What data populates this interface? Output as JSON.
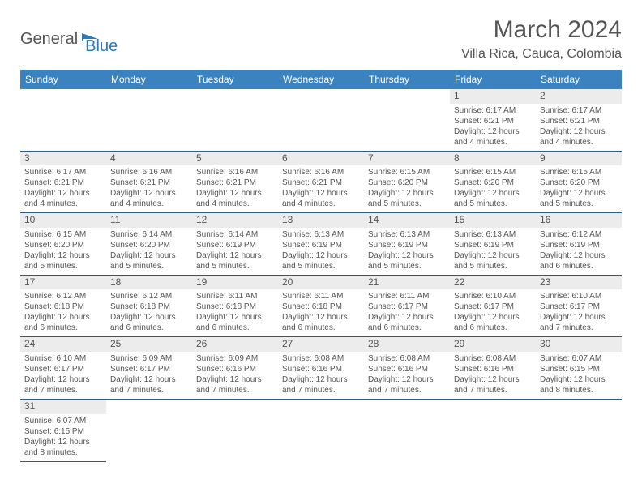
{
  "logo": {
    "text1": "General",
    "text2": "Blue"
  },
  "title": "March 2024",
  "location": "Villa Rica, Cauca, Colombia",
  "colors": {
    "header_bg": "#3b83c0",
    "header_text": "#ffffff",
    "border": "#2a5b8c",
    "daynum_bg": "#ececec",
    "text": "#555555"
  },
  "weekdays": [
    "Sunday",
    "Monday",
    "Tuesday",
    "Wednesday",
    "Thursday",
    "Friday",
    "Saturday"
  ],
  "weeks": [
    [
      null,
      null,
      null,
      null,
      null,
      {
        "d": "1",
        "sr": "Sunrise: 6:17 AM",
        "ss": "Sunset: 6:21 PM",
        "dl1": "Daylight: 12 hours",
        "dl2": "and 4 minutes."
      },
      {
        "d": "2",
        "sr": "Sunrise: 6:17 AM",
        "ss": "Sunset: 6:21 PM",
        "dl1": "Daylight: 12 hours",
        "dl2": "and 4 minutes."
      }
    ],
    [
      {
        "d": "3",
        "sr": "Sunrise: 6:17 AM",
        "ss": "Sunset: 6:21 PM",
        "dl1": "Daylight: 12 hours",
        "dl2": "and 4 minutes."
      },
      {
        "d": "4",
        "sr": "Sunrise: 6:16 AM",
        "ss": "Sunset: 6:21 PM",
        "dl1": "Daylight: 12 hours",
        "dl2": "and 4 minutes."
      },
      {
        "d": "5",
        "sr": "Sunrise: 6:16 AM",
        "ss": "Sunset: 6:21 PM",
        "dl1": "Daylight: 12 hours",
        "dl2": "and 4 minutes."
      },
      {
        "d": "6",
        "sr": "Sunrise: 6:16 AM",
        "ss": "Sunset: 6:21 PM",
        "dl1": "Daylight: 12 hours",
        "dl2": "and 4 minutes."
      },
      {
        "d": "7",
        "sr": "Sunrise: 6:15 AM",
        "ss": "Sunset: 6:20 PM",
        "dl1": "Daylight: 12 hours",
        "dl2": "and 5 minutes."
      },
      {
        "d": "8",
        "sr": "Sunrise: 6:15 AM",
        "ss": "Sunset: 6:20 PM",
        "dl1": "Daylight: 12 hours",
        "dl2": "and 5 minutes."
      },
      {
        "d": "9",
        "sr": "Sunrise: 6:15 AM",
        "ss": "Sunset: 6:20 PM",
        "dl1": "Daylight: 12 hours",
        "dl2": "and 5 minutes."
      }
    ],
    [
      {
        "d": "10",
        "sr": "Sunrise: 6:15 AM",
        "ss": "Sunset: 6:20 PM",
        "dl1": "Daylight: 12 hours",
        "dl2": "and 5 minutes."
      },
      {
        "d": "11",
        "sr": "Sunrise: 6:14 AM",
        "ss": "Sunset: 6:20 PM",
        "dl1": "Daylight: 12 hours",
        "dl2": "and 5 minutes."
      },
      {
        "d": "12",
        "sr": "Sunrise: 6:14 AM",
        "ss": "Sunset: 6:19 PM",
        "dl1": "Daylight: 12 hours",
        "dl2": "and 5 minutes."
      },
      {
        "d": "13",
        "sr": "Sunrise: 6:13 AM",
        "ss": "Sunset: 6:19 PM",
        "dl1": "Daylight: 12 hours",
        "dl2": "and 5 minutes."
      },
      {
        "d": "14",
        "sr": "Sunrise: 6:13 AM",
        "ss": "Sunset: 6:19 PM",
        "dl1": "Daylight: 12 hours",
        "dl2": "and 5 minutes."
      },
      {
        "d": "15",
        "sr": "Sunrise: 6:13 AM",
        "ss": "Sunset: 6:19 PM",
        "dl1": "Daylight: 12 hours",
        "dl2": "and 5 minutes."
      },
      {
        "d": "16",
        "sr": "Sunrise: 6:12 AM",
        "ss": "Sunset: 6:19 PM",
        "dl1": "Daylight: 12 hours",
        "dl2": "and 6 minutes."
      }
    ],
    [
      {
        "d": "17",
        "sr": "Sunrise: 6:12 AM",
        "ss": "Sunset: 6:18 PM",
        "dl1": "Daylight: 12 hours",
        "dl2": "and 6 minutes."
      },
      {
        "d": "18",
        "sr": "Sunrise: 6:12 AM",
        "ss": "Sunset: 6:18 PM",
        "dl1": "Daylight: 12 hours",
        "dl2": "and 6 minutes."
      },
      {
        "d": "19",
        "sr": "Sunrise: 6:11 AM",
        "ss": "Sunset: 6:18 PM",
        "dl1": "Daylight: 12 hours",
        "dl2": "and 6 minutes."
      },
      {
        "d": "20",
        "sr": "Sunrise: 6:11 AM",
        "ss": "Sunset: 6:18 PM",
        "dl1": "Daylight: 12 hours",
        "dl2": "and 6 minutes."
      },
      {
        "d": "21",
        "sr": "Sunrise: 6:11 AM",
        "ss": "Sunset: 6:17 PM",
        "dl1": "Daylight: 12 hours",
        "dl2": "and 6 minutes."
      },
      {
        "d": "22",
        "sr": "Sunrise: 6:10 AM",
        "ss": "Sunset: 6:17 PM",
        "dl1": "Daylight: 12 hours",
        "dl2": "and 6 minutes."
      },
      {
        "d": "23",
        "sr": "Sunrise: 6:10 AM",
        "ss": "Sunset: 6:17 PM",
        "dl1": "Daylight: 12 hours",
        "dl2": "and 7 minutes."
      }
    ],
    [
      {
        "d": "24",
        "sr": "Sunrise: 6:10 AM",
        "ss": "Sunset: 6:17 PM",
        "dl1": "Daylight: 12 hours",
        "dl2": "and 7 minutes."
      },
      {
        "d": "25",
        "sr": "Sunrise: 6:09 AM",
        "ss": "Sunset: 6:17 PM",
        "dl1": "Daylight: 12 hours",
        "dl2": "and 7 minutes."
      },
      {
        "d": "26",
        "sr": "Sunrise: 6:09 AM",
        "ss": "Sunset: 6:16 PM",
        "dl1": "Daylight: 12 hours",
        "dl2": "and 7 minutes."
      },
      {
        "d": "27",
        "sr": "Sunrise: 6:08 AM",
        "ss": "Sunset: 6:16 PM",
        "dl1": "Daylight: 12 hours",
        "dl2": "and 7 minutes."
      },
      {
        "d": "28",
        "sr": "Sunrise: 6:08 AM",
        "ss": "Sunset: 6:16 PM",
        "dl1": "Daylight: 12 hours",
        "dl2": "and 7 minutes."
      },
      {
        "d": "29",
        "sr": "Sunrise: 6:08 AM",
        "ss": "Sunset: 6:16 PM",
        "dl1": "Daylight: 12 hours",
        "dl2": "and 7 minutes."
      },
      {
        "d": "30",
        "sr": "Sunrise: 6:07 AM",
        "ss": "Sunset: 6:15 PM",
        "dl1": "Daylight: 12 hours",
        "dl2": "and 8 minutes."
      }
    ],
    [
      {
        "d": "31",
        "sr": "Sunrise: 6:07 AM",
        "ss": "Sunset: 6:15 PM",
        "dl1": "Daylight: 12 hours",
        "dl2": "and 8 minutes."
      },
      null,
      null,
      null,
      null,
      null,
      null
    ]
  ]
}
